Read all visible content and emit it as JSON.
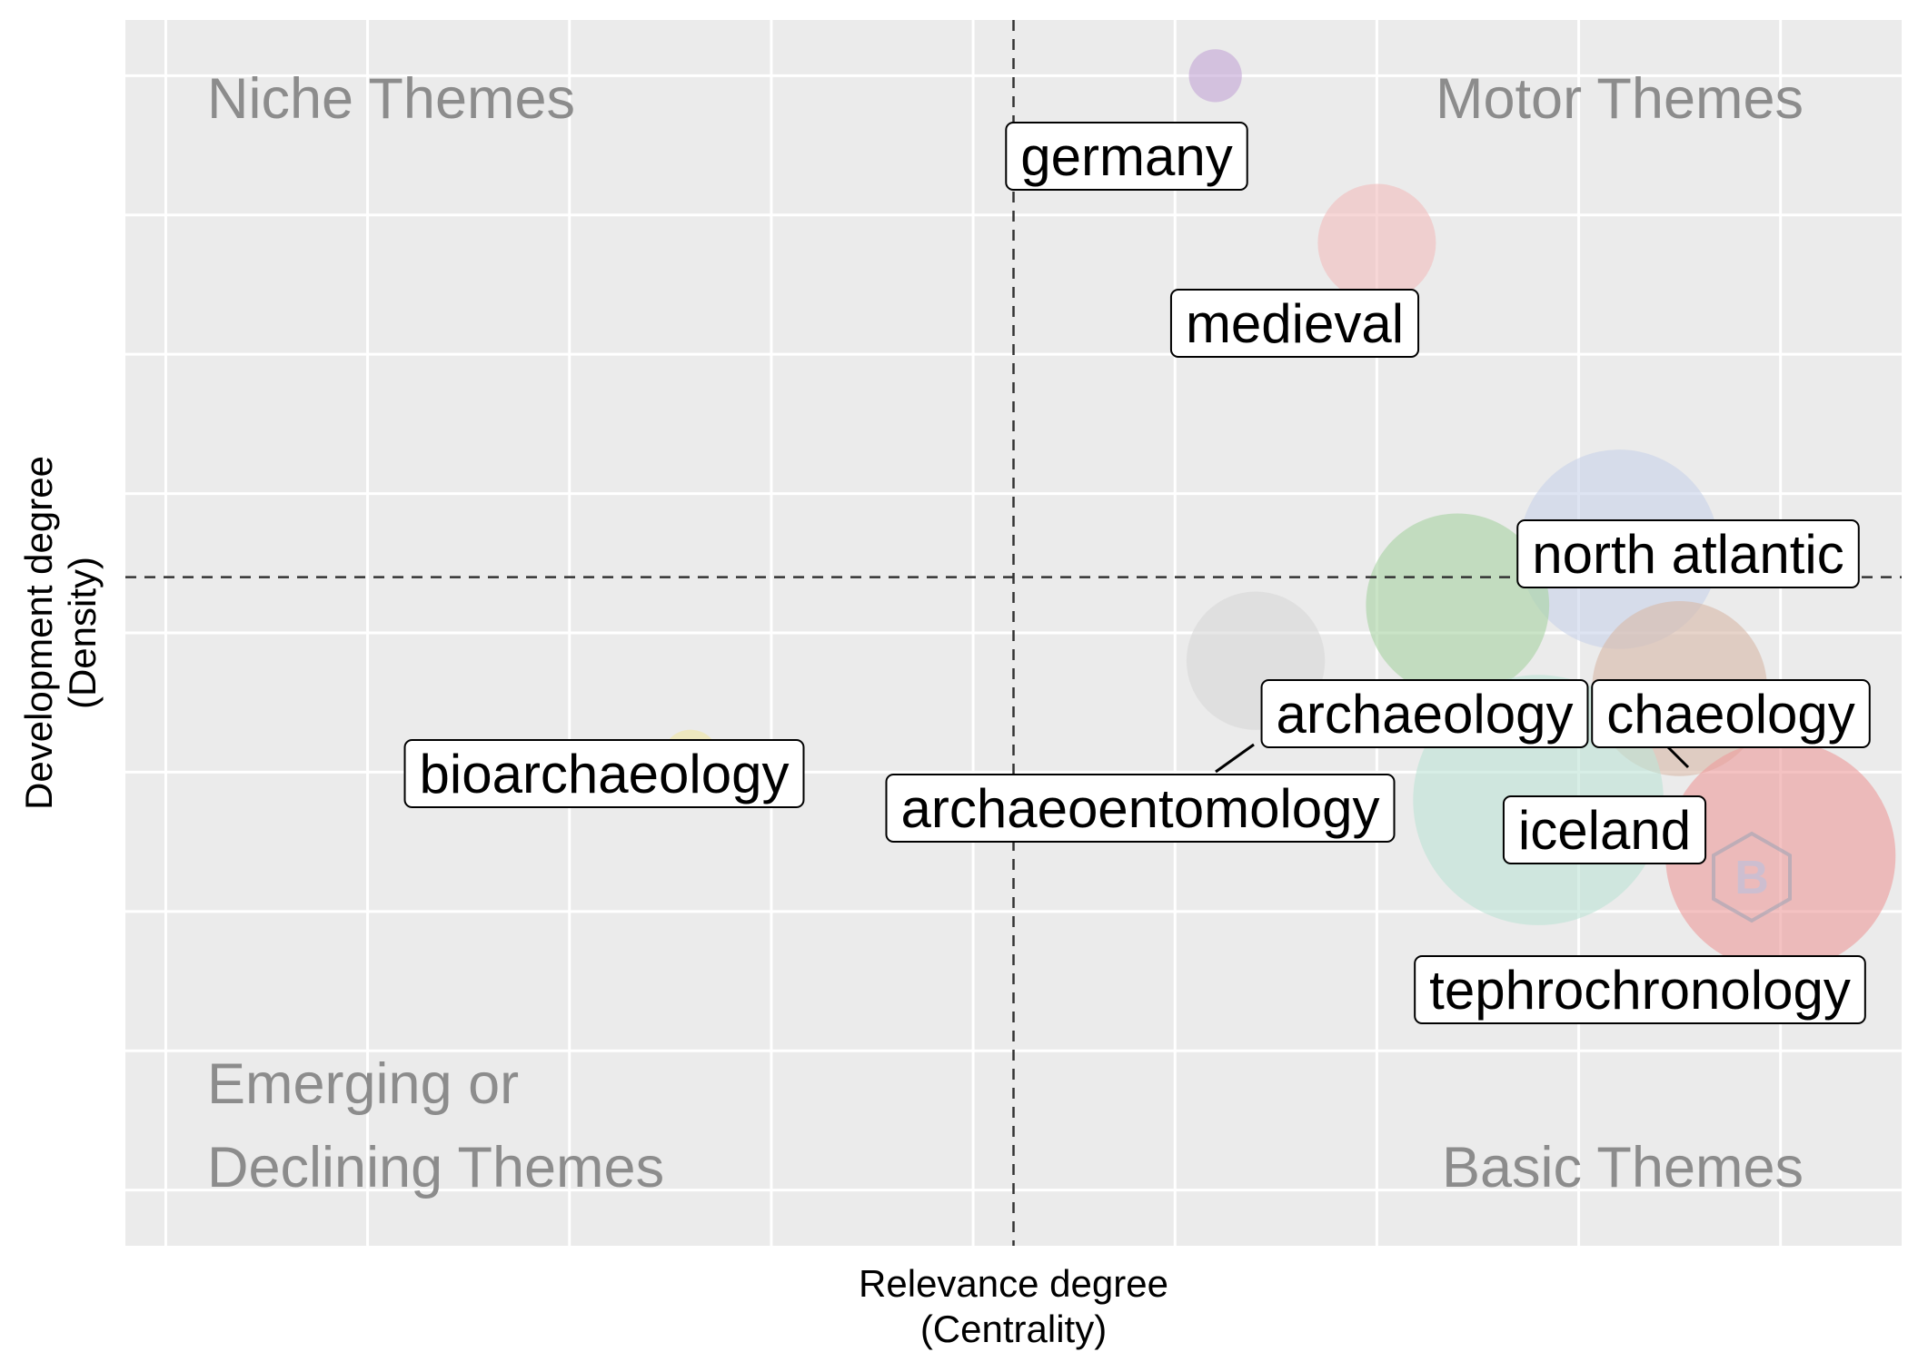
{
  "chart_data": {
    "type": "scatter",
    "title": "",
    "xlabel": [
      "Relevance degree",
      "(Centrality)"
    ],
    "ylabel": [
      "Development degree",
      "(Density)"
    ],
    "xlim": [
      -0.1,
      4.3
    ],
    "ylim": [
      -0.2,
      4.2
    ],
    "xticks": [
      0,
      0.5,
      1,
      1.5,
      2,
      2.5,
      3,
      3.5,
      4
    ],
    "yticks": [
      0,
      0.5,
      1,
      1.5,
      2,
      2.5,
      3,
      3.5,
      4
    ],
    "tick_labels_visible": false,
    "grid": true,
    "reference_lines": {
      "x": 2.1,
      "y": 2.2
    },
    "quadrants": {
      "top_left": [
        "Niche Themes"
      ],
      "top_right": [
        "Motor Themes"
      ],
      "bottom_left": [
        "Emerging or",
        "Declining Themes"
      ],
      "bottom_right": [
        "Basic Themes"
      ]
    },
    "points": [
      {
        "label": "germany",
        "x": 2.6,
        "y": 4.0,
        "size": 18,
        "color": "#c5a8d6"
      },
      {
        "label": "medieval",
        "x": 3.0,
        "y": 3.4,
        "size": 50,
        "color": "#f2bfbf"
      },
      {
        "label": "north atlantic",
        "x": 3.6,
        "y": 2.3,
        "size": 90,
        "color": "#c9d3ea"
      },
      {
        "label": "archaeology",
        "x": 3.2,
        "y": 2.1,
        "size": 82,
        "color": "#a9d3a5"
      },
      {
        "label": "chaeology",
        "x": 3.75,
        "y": 1.8,
        "size": 78,
        "color": "#d9b9a9"
      },
      {
        "label": "archaeoentomology",
        "x": 2.7,
        "y": 1.9,
        "size": 60,
        "color": "#d9d9d9"
      },
      {
        "label": "bioarchaeology",
        "x": 1.3,
        "y": 1.55,
        "size": 20,
        "color": "#f1e7a4"
      },
      {
        "label": "iceland",
        "x": 3.4,
        "y": 1.4,
        "size": 115,
        "color": "#bfe3d6"
      },
      {
        "label": "tephrochronology",
        "x": 4.0,
        "y": 1.2,
        "size": 105,
        "color": "#ee9c9c"
      }
    ]
  }
}
